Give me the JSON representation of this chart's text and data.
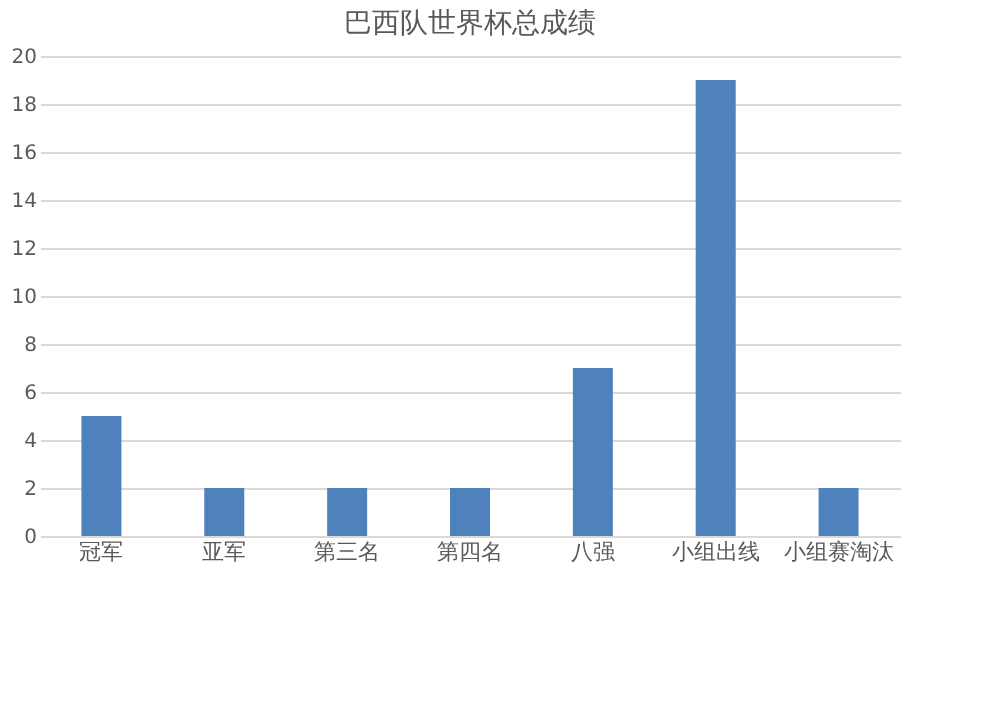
{
  "chart_data": {
    "type": "bar",
    "title": "巴西队世界杯总成绩",
    "categories": [
      "冠军",
      "亚军",
      "第三名",
      "第四名",
      "八强",
      "小组出线",
      "小组赛淘汰"
    ],
    "values": [
      5,
      2,
      2,
      2,
      7,
      19,
      2
    ],
    "color": "#4f81bd",
    "ylim": [
      0,
      20
    ],
    "yticks": [
      0,
      2,
      4,
      6,
      8,
      10,
      12,
      14,
      16,
      18,
      20
    ],
    "grid": "y"
  }
}
